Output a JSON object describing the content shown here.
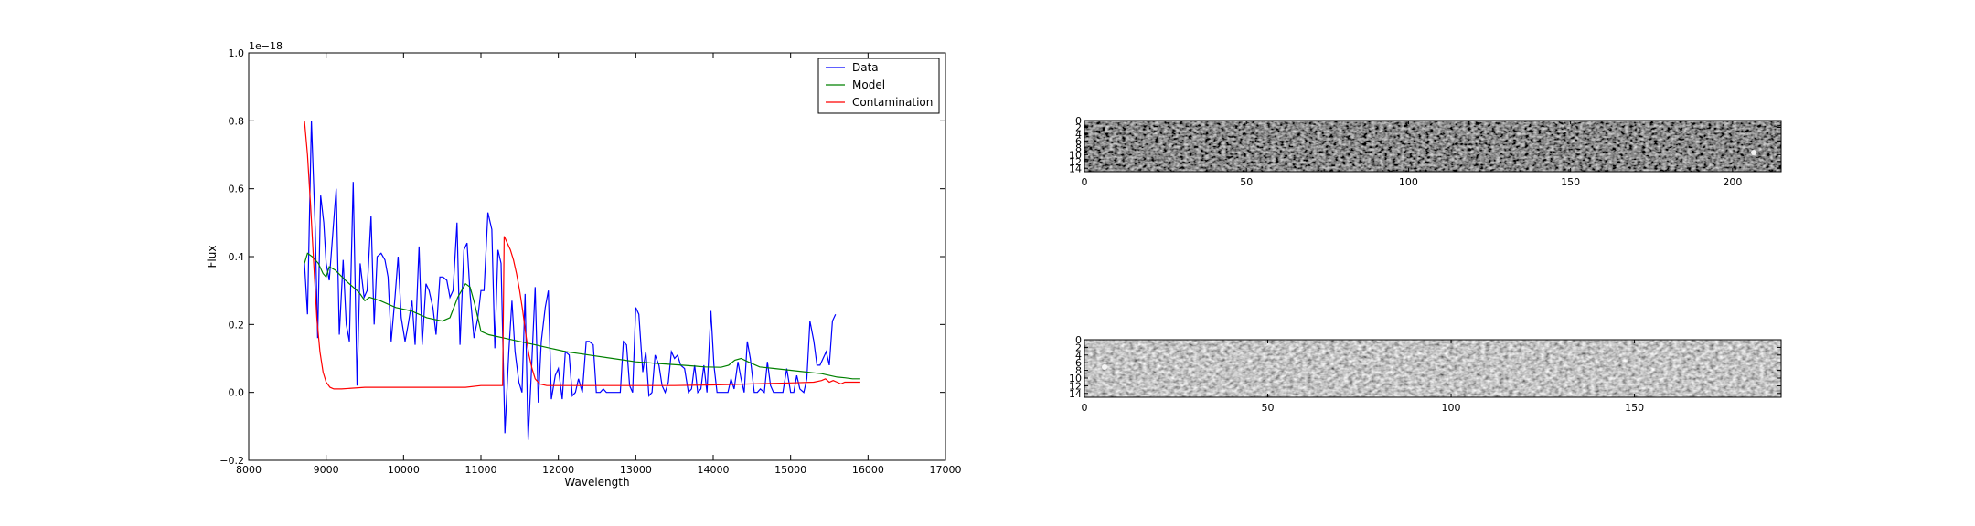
{
  "chart_data": [
    {
      "type": "line",
      "xlabel": "Wavelength",
      "ylabel": "Flux",
      "y_multiplier": "1e−18",
      "xlim": [
        8000,
        17000
      ],
      "ylim": [
        -0.2,
        1.0
      ],
      "xticks": [
        8000,
        9000,
        10000,
        11000,
        12000,
        13000,
        14000,
        15000,
        16000,
        17000
      ],
      "yticks": [
        -0.2,
        0.0,
        0.2,
        0.4,
        0.6,
        0.8,
        1.0
      ],
      "legend_position": "top-right",
      "series": [
        {
          "name": "Data",
          "color": "#0000ff",
          "points": [
            [
              8720,
              0.38
            ],
            [
              8760,
              0.23
            ],
            [
              8810,
              0.8
            ],
            [
              8860,
              0.48
            ],
            [
              8890,
              0.16
            ],
            [
              8930,
              0.58
            ],
            [
              8970,
              0.5
            ],
            [
              9000,
              0.38
            ],
            [
              9040,
              0.33
            ],
            [
              9090,
              0.48
            ],
            [
              9130,
              0.6
            ],
            [
              9170,
              0.17
            ],
            [
              9220,
              0.39
            ],
            [
              9260,
              0.2
            ],
            [
              9300,
              0.15
            ],
            [
              9350,
              0.62
            ],
            [
              9400,
              0.02
            ],
            [
              9440,
              0.38
            ],
            [
              9490,
              0.28
            ],
            [
              9530,
              0.3
            ],
            [
              9580,
              0.52
            ],
            [
              9620,
              0.2
            ],
            [
              9660,
              0.4
            ],
            [
              9710,
              0.41
            ],
            [
              9760,
              0.39
            ],
            [
              9800,
              0.34
            ],
            [
              9840,
              0.15
            ],
            [
              9890,
              0.28
            ],
            [
              9930,
              0.4
            ],
            [
              9970,
              0.22
            ],
            [
              10020,
              0.15
            ],
            [
              10060,
              0.2
            ],
            [
              10110,
              0.27
            ],
            [
              10150,
              0.14
            ],
            [
              10200,
              0.43
            ],
            [
              10240,
              0.14
            ],
            [
              10290,
              0.32
            ],
            [
              10330,
              0.3
            ],
            [
              10380,
              0.25
            ],
            [
              10420,
              0.17
            ],
            [
              10470,
              0.34
            ],
            [
              10510,
              0.34
            ],
            [
              10560,
              0.33
            ],
            [
              10600,
              0.28
            ],
            [
              10640,
              0.3
            ],
            [
              10690,
              0.5
            ],
            [
              10730,
              0.14
            ],
            [
              10780,
              0.42
            ],
            [
              10820,
              0.44
            ],
            [
              10860,
              0.29
            ],
            [
              10910,
              0.16
            ],
            [
              10960,
              0.22
            ],
            [
              11000,
              0.3
            ],
            [
              11040,
              0.3
            ],
            [
              11090,
              0.53
            ],
            [
              11140,
              0.48
            ],
            [
              11180,
              0.13
            ],
            [
              11220,
              0.42
            ],
            [
              11260,
              0.38
            ],
            [
              11310,
              -0.12
            ],
            [
              11360,
              0.12
            ],
            [
              11400,
              0.27
            ],
            [
              11440,
              0.12
            ],
            [
              11490,
              0.03
            ],
            [
              11530,
              0.0
            ],
            [
              11570,
              0.29
            ],
            [
              11610,
              -0.14
            ],
            [
              11650,
              0.05
            ],
            [
              11700,
              0.31
            ],
            [
              11740,
              -0.03
            ],
            [
              11780,
              0.15
            ],
            [
              11830,
              0.25
            ],
            [
              11870,
              0.3
            ],
            [
              11910,
              -0.02
            ],
            [
              11960,
              0.05
            ],
            [
              12000,
              0.07
            ],
            [
              12050,
              -0.02
            ],
            [
              12090,
              0.12
            ],
            [
              12140,
              0.11
            ],
            [
              12180,
              -0.01
            ],
            [
              12220,
              0.0
            ],
            [
              12260,
              0.04
            ],
            [
              12310,
              0.0
            ],
            [
              12360,
              0.15
            ],
            [
              12400,
              0.15
            ],
            [
              12450,
              0.14
            ],
            [
              12490,
              0.0
            ],
            [
              12540,
              0.0
            ],
            [
              12580,
              0.01
            ],
            [
              12620,
              0.0
            ],
            [
              12660,
              0.0
            ],
            [
              12700,
              0.0
            ],
            [
              12750,
              0.0
            ],
            [
              12800,
              0.0
            ],
            [
              12840,
              0.15
            ],
            [
              12880,
              0.14
            ],
            [
              12920,
              0.02
            ],
            [
              12960,
              0.0
            ],
            [
              13000,
              0.25
            ],
            [
              13040,
              0.23
            ],
            [
              13090,
              0.06
            ],
            [
              13130,
              0.12
            ],
            [
              13170,
              -0.01
            ],
            [
              13210,
              0.0
            ],
            [
              13250,
              0.11
            ],
            [
              13300,
              0.08
            ],
            [
              13340,
              0.02
            ],
            [
              13380,
              0.0
            ],
            [
              13420,
              0.03
            ],
            [
              13460,
              0.12
            ],
            [
              13500,
              0.1
            ],
            [
              13540,
              0.11
            ],
            [
              13580,
              0.08
            ],
            [
              13630,
              0.07
            ],
            [
              13680,
              0.0
            ],
            [
              13720,
              0.01
            ],
            [
              13760,
              0.08
            ],
            [
              13800,
              0.0
            ],
            [
              13840,
              0.01
            ],
            [
              13880,
              0.08
            ],
            [
              13920,
              0.0
            ],
            [
              13970,
              0.24
            ],
            [
              14010,
              0.08
            ],
            [
              14050,
              0.0
            ],
            [
              14100,
              0.0
            ],
            [
              14140,
              0.0
            ],
            [
              14190,
              0.0
            ],
            [
              14230,
              0.04
            ],
            [
              14270,
              0.01
            ],
            [
              14320,
              0.09
            ],
            [
              14360,
              0.04
            ],
            [
              14400,
              0.0
            ],
            [
              14440,
              0.15
            ],
            [
              14480,
              0.1
            ],
            [
              14530,
              0.0
            ],
            [
              14570,
              0.0
            ],
            [
              14610,
              0.01
            ],
            [
              14660,
              0.0
            ],
            [
              14700,
              0.09
            ],
            [
              14740,
              0.02
            ],
            [
              14780,
              0.0
            ],
            [
              14820,
              0.0
            ],
            [
              14860,
              0.0
            ],
            [
              14900,
              0.0
            ],
            [
              14950,
              0.07
            ],
            [
              15000,
              0.0
            ],
            [
              15040,
              0.0
            ],
            [
              15080,
              0.05
            ],
            [
              15120,
              0.01
            ],
            [
              15170,
              0.0
            ],
            [
              15210,
              0.04
            ],
            [
              15250,
              0.21
            ],
            [
              15300,
              0.15
            ],
            [
              15340,
              0.08
            ],
            [
              15380,
              0.08
            ],
            [
              15420,
              0.1
            ],
            [
              15460,
              0.12
            ],
            [
              15500,
              0.08
            ],
            [
              15540,
              0.21
            ],
            [
              15580,
              0.23
            ]
          ]
        },
        {
          "name": "Model",
          "color": "#008000",
          "points": [
            [
              8720,
              0.38
            ],
            [
              8760,
              0.41
            ],
            [
              8820,
              0.4
            ],
            [
              8900,
              0.38
            ],
            [
              8960,
              0.35
            ],
            [
              9000,
              0.34
            ],
            [
              9040,
              0.37
            ],
            [
              9120,
              0.36
            ],
            [
              9250,
              0.33
            ],
            [
              9400,
              0.3
            ],
            [
              9440,
              0.29
            ],
            [
              9500,
              0.27
            ],
            [
              9560,
              0.28
            ],
            [
              9700,
              0.27
            ],
            [
              9900,
              0.25
            ],
            [
              10100,
              0.24
            ],
            [
              10300,
              0.22
            ],
            [
              10500,
              0.21
            ],
            [
              10600,
              0.22
            ],
            [
              10700,
              0.28
            ],
            [
              10800,
              0.32
            ],
            [
              10860,
              0.31
            ],
            [
              10920,
              0.26
            ],
            [
              11000,
              0.18
            ],
            [
              11100,
              0.17
            ],
            [
              11300,
              0.16
            ],
            [
              11500,
              0.15
            ],
            [
              11700,
              0.14
            ],
            [
              11900,
              0.13
            ],
            [
              12100,
              0.12
            ],
            [
              12400,
              0.11
            ],
            [
              12700,
              0.1
            ],
            [
              13000,
              0.09
            ],
            [
              13300,
              0.085
            ],
            [
              13600,
              0.08
            ],
            [
              13900,
              0.075
            ],
            [
              14100,
              0.074
            ],
            [
              14200,
              0.08
            ],
            [
              14280,
              0.095
            ],
            [
              14360,
              0.1
            ],
            [
              14450,
              0.09
            ],
            [
              14600,
              0.075
            ],
            [
              14800,
              0.07
            ],
            [
              15000,
              0.065
            ],
            [
              15200,
              0.06
            ],
            [
              15400,
              0.055
            ],
            [
              15500,
              0.05
            ],
            [
              15600,
              0.045
            ],
            [
              15700,
              0.043
            ],
            [
              15800,
              0.04
            ],
            [
              15900,
              0.04
            ]
          ]
        },
        {
          "name": "Contamination",
          "color": "#ff0000",
          "points": [
            [
              8720,
              0.8
            ],
            [
              8760,
              0.7
            ],
            [
              8800,
              0.55
            ],
            [
              8840,
              0.38
            ],
            [
              8880,
              0.22
            ],
            [
              8920,
              0.12
            ],
            [
              8960,
              0.06
            ],
            [
              9000,
              0.03
            ],
            [
              9050,
              0.015
            ],
            [
              9100,
              0.01
            ],
            [
              9200,
              0.01
            ],
            [
              9500,
              0.015
            ],
            [
              10000,
              0.015
            ],
            [
              10500,
              0.015
            ],
            [
              10800,
              0.015
            ],
            [
              11000,
              0.02
            ],
            [
              11250,
              0.02
            ],
            [
              11280,
              0.02
            ],
            [
              11300,
              0.46
            ],
            [
              11340,
              0.44
            ],
            [
              11380,
              0.42
            ],
            [
              11420,
              0.39
            ],
            [
              11460,
              0.35
            ],
            [
              11500,
              0.3
            ],
            [
              11540,
              0.24
            ],
            [
              11580,
              0.17
            ],
            [
              11620,
              0.11
            ],
            [
              11660,
              0.07
            ],
            [
              11700,
              0.04
            ],
            [
              11760,
              0.025
            ],
            [
              11850,
              0.02
            ],
            [
              12000,
              0.02
            ],
            [
              12500,
              0.02
            ],
            [
              13000,
              0.02
            ],
            [
              13500,
              0.02
            ],
            [
              14000,
              0.022
            ],
            [
              14500,
              0.025
            ],
            [
              15000,
              0.028
            ],
            [
              15300,
              0.03
            ],
            [
              15400,
              0.035
            ],
            [
              15450,
              0.04
            ],
            [
              15500,
              0.03
            ],
            [
              15550,
              0.035
            ],
            [
              15600,
              0.03
            ],
            [
              15650,
              0.025
            ],
            [
              15700,
              0.03
            ],
            [
              15900,
              0.03
            ]
          ]
        }
      ]
    },
    {
      "type": "heatmap",
      "colormap": "gray",
      "xlim": [
        0,
        215
      ],
      "ylim_rows": [
        0,
        15
      ],
      "xticks": [
        0,
        50,
        100,
        150,
        200
      ],
      "yticks": [
        0,
        2,
        4,
        6,
        8,
        10,
        12,
        14
      ]
    },
    {
      "type": "heatmap",
      "colormap": "gray",
      "xlim": [
        0,
        190
      ],
      "ylim_rows": [
        0,
        15
      ],
      "xticks": [
        0,
        50,
        100,
        150
      ],
      "yticks": [
        0,
        2,
        4,
        6,
        8,
        10,
        12,
        14
      ]
    }
  ]
}
